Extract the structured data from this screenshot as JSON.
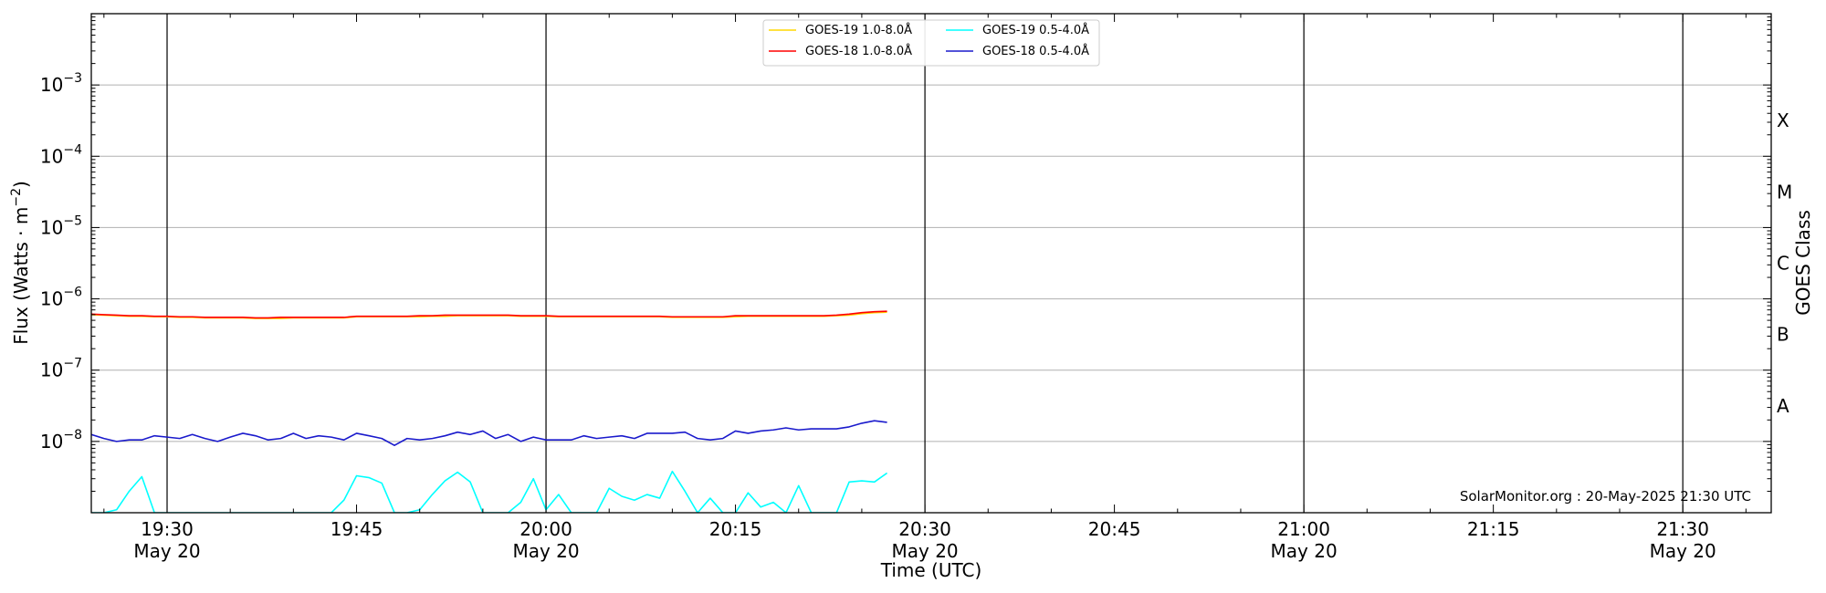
{
  "chart_data": {
    "type": "line",
    "xlabel": "Time (UTC)",
    "ylabel": "Flux (Watts · m⁻²)",
    "right_ylabel": "GOES Class",
    "y_scale": "log",
    "ylim": [
      1e-09,
      0.01
    ],
    "xlim": [
      "2025-05-20T19:24:00",
      "2025-05-20T21:37:00"
    ],
    "grid": "horizontal lines at decades",
    "legend_position": "top-center",
    "x_ticks": [
      {
        "time": "2025-05-20T19:30:00",
        "label": "19:30",
        "sublabel": "May 20"
      },
      {
        "time": "2025-05-20T19:45:00",
        "label": "19:45",
        "sublabel": ""
      },
      {
        "time": "2025-05-20T20:00:00",
        "label": "20:00",
        "sublabel": "May 20"
      },
      {
        "time": "2025-05-20T20:15:00",
        "label": "20:15",
        "sublabel": ""
      },
      {
        "time": "2025-05-20T20:30:00",
        "label": "20:30",
        "sublabel": "May 20"
      },
      {
        "time": "2025-05-20T20:45:00",
        "label": "20:45",
        "sublabel": ""
      },
      {
        "time": "2025-05-20T21:00:00",
        "label": "21:00",
        "sublabel": "May 20"
      },
      {
        "time": "2025-05-20T21:15:00",
        "label": "21:15",
        "sublabel": ""
      },
      {
        "time": "2025-05-20T21:30:00",
        "label": "21:30",
        "sublabel": "May 20"
      }
    ],
    "vertical_lines": [
      "2025-05-20T19:30:00",
      "2025-05-20T20:00:00",
      "2025-05-20T20:30:00",
      "2025-05-20T21:00:00",
      "2025-05-20T21:30:00"
    ],
    "y_ticks": [
      {
        "value": 0.001,
        "label_base": "10",
        "label_exp": "−3"
      },
      {
        "value": 0.0001,
        "label_base": "10",
        "label_exp": "−4"
      },
      {
        "value": 1e-05,
        "label_base": "10",
        "label_exp": "−5"
      },
      {
        "value": 1e-06,
        "label_base": "10",
        "label_exp": "−6"
      },
      {
        "value": 1e-07,
        "label_base": "10",
        "label_exp": "−7"
      },
      {
        "value": 1e-08,
        "label_base": "10",
        "label_exp": "−8"
      }
    ],
    "goes_classes": [
      {
        "label": "X",
        "value": 0.000316
      },
      {
        "label": "M",
        "value": 3.16e-05
      },
      {
        "label": "C",
        "value": 3.16e-06
      },
      {
        "label": "B",
        "value": 3.16e-07
      },
      {
        "label": "A",
        "value": 3.16e-08
      }
    ],
    "x": [
      "19:24",
      "19:25",
      "19:26",
      "19:27",
      "19:28",
      "19:29",
      "19:30",
      "19:31",
      "19:32",
      "19:33",
      "19:34",
      "19:35",
      "19:36",
      "19:37",
      "19:38",
      "19:39",
      "19:40",
      "19:41",
      "19:42",
      "19:43",
      "19:44",
      "19:45",
      "19:46",
      "19:47",
      "19:48",
      "19:49",
      "19:50",
      "19:51",
      "19:52",
      "19:53",
      "19:54",
      "19:55",
      "19:56",
      "19:57",
      "19:58",
      "19:59",
      "20:00",
      "20:01",
      "20:02",
      "20:03",
      "20:04",
      "20:05",
      "20:06",
      "20:07",
      "20:08",
      "20:09",
      "20:10",
      "20:11",
      "20:12",
      "20:13",
      "20:14",
      "20:15",
      "20:16",
      "20:17",
      "20:18",
      "20:19",
      "20:20",
      "20:21",
      "20:22",
      "20:23",
      "20:24",
      "20:25",
      "20:26",
      "20:27"
    ],
    "series": [
      {
        "name": "GOES-19 1.0-8.0Å",
        "color": "#ffd700",
        "values": [
          6e-07,
          5.9e-07,
          5.8e-07,
          5.7e-07,
          5.7e-07,
          5.6e-07,
          5.6e-07,
          5.5e-07,
          5.5e-07,
          5.4e-07,
          5.4e-07,
          5.4e-07,
          5.4e-07,
          5.3e-07,
          5.3e-07,
          5.3e-07,
          5.4e-07,
          5.4e-07,
          5.4e-07,
          5.4e-07,
          5.4e-07,
          5.6e-07,
          5.6e-07,
          5.6e-07,
          5.6e-07,
          5.6e-07,
          5.6e-07,
          5.7e-07,
          5.7e-07,
          5.8e-07,
          5.8e-07,
          5.8e-07,
          5.8e-07,
          5.8e-07,
          5.7e-07,
          5.7e-07,
          5.7e-07,
          5.6e-07,
          5.6e-07,
          5.6e-07,
          5.6e-07,
          5.6e-07,
          5.6e-07,
          5.6e-07,
          5.6e-07,
          5.6e-07,
          5.5e-07,
          5.5e-07,
          5.5e-07,
          5.5e-07,
          5.5e-07,
          5.6e-07,
          5.7e-07,
          5.7e-07,
          5.7e-07,
          5.7e-07,
          5.7e-07,
          5.7e-07,
          5.7e-07,
          5.8e-07,
          5.9e-07,
          6.2e-07,
          6.4e-07,
          6.5e-07
        ]
      },
      {
        "name": "GOES-18 1.0-8.0Å",
        "color": "#ff0000",
        "values": [
          6.1e-07,
          6e-07,
          5.9e-07,
          5.8e-07,
          5.8e-07,
          5.7e-07,
          5.7e-07,
          5.6e-07,
          5.6e-07,
          5.5e-07,
          5.5e-07,
          5.5e-07,
          5.5e-07,
          5.4e-07,
          5.4e-07,
          5.5e-07,
          5.5e-07,
          5.5e-07,
          5.5e-07,
          5.5e-07,
          5.5e-07,
          5.7e-07,
          5.7e-07,
          5.7e-07,
          5.7e-07,
          5.7e-07,
          5.8e-07,
          5.8e-07,
          5.9e-07,
          5.9e-07,
          5.9e-07,
          5.9e-07,
          5.9e-07,
          5.9e-07,
          5.8e-07,
          5.8e-07,
          5.8e-07,
          5.7e-07,
          5.7e-07,
          5.7e-07,
          5.7e-07,
          5.7e-07,
          5.7e-07,
          5.7e-07,
          5.7e-07,
          5.7e-07,
          5.6e-07,
          5.6e-07,
          5.6e-07,
          5.6e-07,
          5.6e-07,
          5.8e-07,
          5.8e-07,
          5.8e-07,
          5.8e-07,
          5.8e-07,
          5.8e-07,
          5.8e-07,
          5.8e-07,
          5.9e-07,
          6.1e-07,
          6.4e-07,
          6.6e-07,
          6.7e-07
        ]
      },
      {
        "name": "GOES-19 0.5-4.0Å",
        "color": "#00ffff",
        "values": [
          1e-09,
          1e-09,
          1.1e-09,
          2e-09,
          3.2e-09,
          1e-09,
          1e-09,
          1e-09,
          1e-09,
          1e-09,
          1e-09,
          1e-09,
          1e-09,
          1e-09,
          1e-09,
          1e-09,
          1e-09,
          1e-09,
          1e-09,
          1e-09,
          1.5e-09,
          3.3e-09,
          3.1e-09,
          2.6e-09,
          1e-09,
          1e-09,
          1.1e-09,
          1.8e-09,
          2.8e-09,
          3.7e-09,
          2.7e-09,
          1e-09,
          1e-09,
          1e-09,
          1.4e-09,
          3e-09,
          1.1e-09,
          1.8e-09,
          1e-09,
          1e-09,
          1e-09,
          2.2e-09,
          1.7e-09,
          1.5e-09,
          1.8e-09,
          1.6e-09,
          3.8e-09,
          2e-09,
          1e-09,
          1.6e-09,
          1e-09,
          1e-09,
          1.9e-09,
          1.2e-09,
          1.4e-09,
          1e-09,
          2.4e-09,
          1e-09,
          1e-09,
          1e-09,
          2.7e-09,
          2.8e-09,
          2.7e-09,
          3.6e-09
        ]
      },
      {
        "name": "GOES-18 0.5-4.0Å",
        "color": "#1a1acc",
        "values": [
          1.25e-08,
          1.1e-08,
          1e-08,
          1.05e-08,
          1.05e-08,
          1.2e-08,
          1.15e-08,
          1.1e-08,
          1.25e-08,
          1.1e-08,
          1e-08,
          1.15e-08,
          1.3e-08,
          1.2e-08,
          1.05e-08,
          1.1e-08,
          1.3e-08,
          1.1e-08,
          1.2e-08,
          1.15e-08,
          1.05e-08,
          1.3e-08,
          1.2e-08,
          1.1e-08,
          8.8e-09,
          1.1e-08,
          1.05e-08,
          1.1e-08,
          1.2e-08,
          1.35e-08,
          1.25e-08,
          1.4e-08,
          1.1e-08,
          1.25e-08,
          1e-08,
          1.15e-08,
          1.05e-08,
          1.05e-08,
          1.05e-08,
          1.2e-08,
          1.1e-08,
          1.15e-08,
          1.2e-08,
          1.1e-08,
          1.3e-08,
          1.3e-08,
          1.3e-08,
          1.35e-08,
          1.1e-08,
          1.05e-08,
          1.1e-08,
          1.4e-08,
          1.3e-08,
          1.4e-08,
          1.45e-08,
          1.55e-08,
          1.45e-08,
          1.5e-08,
          1.5e-08,
          1.5e-08,
          1.6e-08,
          1.8e-08,
          1.95e-08,
          1.85e-08
        ]
      }
    ],
    "annotation": "SolarMonitor.org : 20-May-2025 21:30 UTC"
  }
}
